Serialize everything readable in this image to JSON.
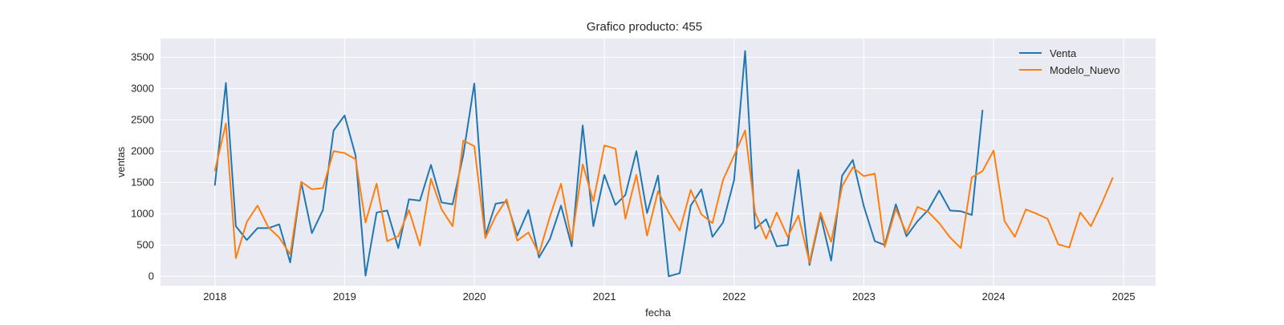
{
  "chart_data": {
    "type": "line",
    "title": "Grafico producto: 455",
    "xlabel": "fecha",
    "ylabel": "ventas",
    "x_is_date": true,
    "xlim": [
      "2017-08-01",
      "2025-04-01"
    ],
    "ylim": [
      -150,
      3800
    ],
    "x_ticks": [
      "2018-01-01",
      "2019-01-01",
      "2020-01-01",
      "2021-01-01",
      "2022-01-01",
      "2023-01-01",
      "2024-01-01",
      "2025-01-01"
    ],
    "x_tick_labels": [
      "2018",
      "2019",
      "2020",
      "2021",
      "2022",
      "2023",
      "2024",
      "2025"
    ],
    "y_ticks": [
      0,
      500,
      1000,
      1500,
      2000,
      2500,
      3000,
      3500
    ],
    "y_tick_labels": [
      "0",
      "500",
      "1000",
      "1500",
      "2000",
      "2500",
      "3000",
      "3500"
    ],
    "grid": true,
    "background": "#eaeaf2",
    "legend_position": "top-right",
    "series": [
      {
        "name": "Venta",
        "color": "#1f77b4",
        "start": "2018-01",
        "values": [
          1460,
          3090,
          800,
          580,
          770,
          770,
          830,
          220,
          1500,
          690,
          1060,
          2330,
          2570,
          1930,
          10,
          1020,
          1050,
          450,
          1230,
          1210,
          1780,
          1180,
          1150,
          1940,
          3080,
          650,
          1160,
          1190,
          650,
          1060,
          300,
          600,
          1130,
          480,
          2410,
          800,
          1620,
          1140,
          1300,
          2000,
          1010,
          1610,
          0,
          50,
          1130,
          1390,
          630,
          860,
          1540,
          3600,
          760,
          910,
          480,
          500,
          1700,
          180,
          980,
          250,
          1610,
          1860,
          1120,
          560,
          500,
          1150,
          640,
          880,
          1060,
          1370,
          1050,
          1040,
          980,
          2650
        ]
      },
      {
        "name": "Modelo_Nuevo",
        "color": "#ff7f0e",
        "start": "2018-01",
        "values": [
          1690,
          2440,
          290,
          870,
          1130,
          780,
          620,
          350,
          1510,
          1390,
          1410,
          2000,
          1970,
          1870,
          860,
          1480,
          560,
          640,
          1060,
          490,
          1560,
          1070,
          800,
          2170,
          2080,
          610,
          960,
          1230,
          570,
          700,
          360,
          960,
          1480,
          570,
          1790,
          1200,
          2090,
          2040,
          920,
          1620,
          650,
          1360,
          1020,
          730,
          1380,
          990,
          850,
          1540,
          1930,
          2330,
          1020,
          600,
          1020,
          630,
          970,
          220,
          1020,
          550,
          1440,
          1740,
          1600,
          1640,
          470,
          1080,
          690,
          1110,
          1030,
          850,
          620,
          450,
          1580,
          1680,
          2010,
          880,
          630,
          1070,
          1000,
          920,
          510,
          460,
          1020,
          800,
          1170,
          1570
        ]
      }
    ]
  }
}
